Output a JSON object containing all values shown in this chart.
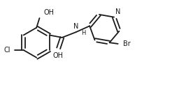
{
  "bg_color": "#ffffff",
  "line_color": "#1a1a1a",
  "line_width": 1.3,
  "font_size": 7.0,
  "xlim": [
    -1.2,
    4.5
  ],
  "ylim": [
    -0.9,
    1.6
  ]
}
